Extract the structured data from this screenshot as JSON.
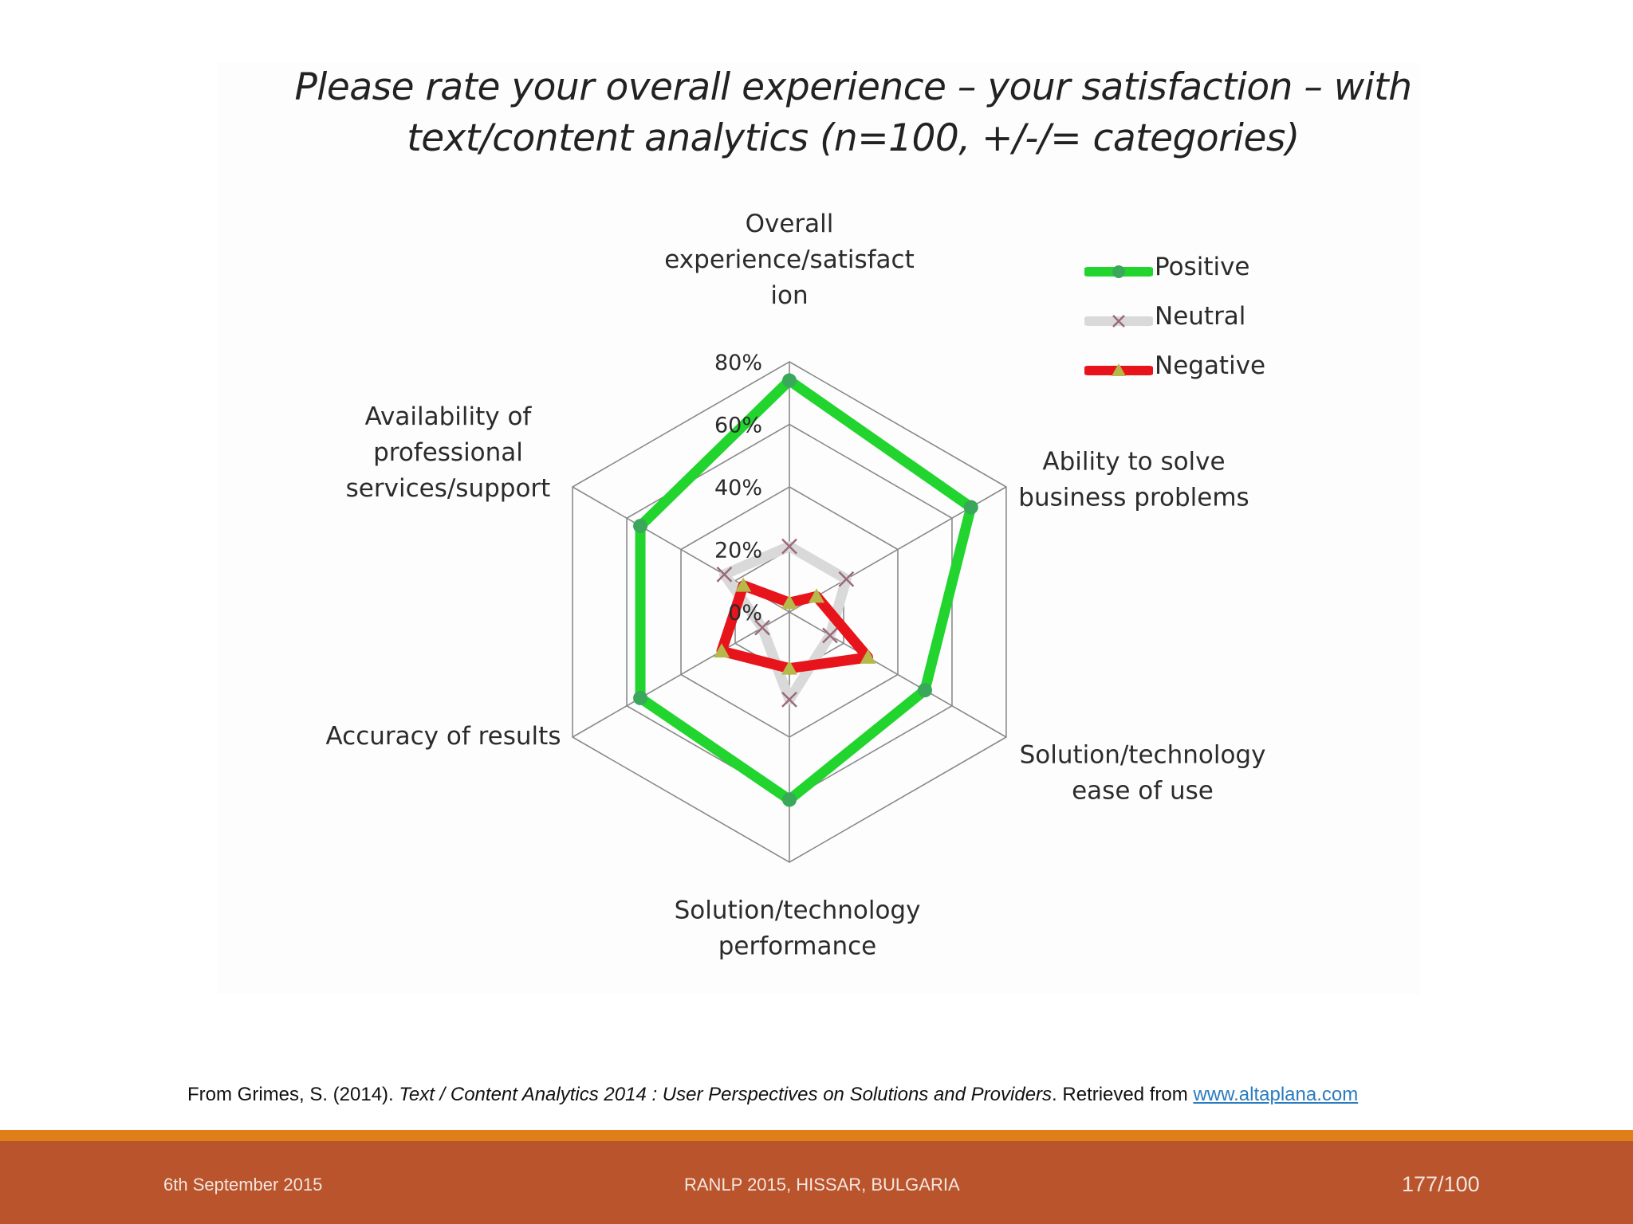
{
  "chart_data": {
    "type": "radar",
    "title": [
      "Please rate your overall experience – your satisfaction – with",
      "text/content analytics (n=100, +/-/= categories)"
    ],
    "axes": [
      {
        "label": [
          "Overall",
          "experience/satisfact",
          "ion"
        ]
      },
      {
        "label": [
          "Ability to solve",
          "business problems"
        ]
      },
      {
        "label": [
          "Solution/technology",
          "ease of use"
        ]
      },
      {
        "label": [
          "Solution/technology",
          "performance"
        ]
      },
      {
        "label": [
          "Accuracy of results"
        ]
      },
      {
        "label": [
          "Availability of",
          "professional",
          "services/support"
        ]
      }
    ],
    "scale": {
      "min": 0,
      "max": 80,
      "ticks": [
        "0%",
        "20%",
        "40%",
        "60%",
        "80%"
      ],
      "tick_values": [
        0,
        20,
        40,
        60,
        80
      ]
    },
    "legend_position": "top-right",
    "series": [
      {
        "name": "Positive",
        "color": "#22d42e",
        "marker": "circle",
        "marker_color": "#3aa85a",
        "values": [
          74,
          67,
          50,
          60,
          55,
          55
        ]
      },
      {
        "name": "Neutral",
        "color": "#d9d9d9",
        "marker": "x",
        "marker_color": "#9b6a7a",
        "values": [
          21,
          21,
          15,
          28,
          10,
          24
        ]
      },
      {
        "name": "Negative",
        "color": "#e8141c",
        "marker": "triangle",
        "marker_color": "#b6b84a",
        "values": [
          3,
          10,
          29,
          18,
          25,
          17
        ]
      }
    ]
  },
  "citation": {
    "prefix": "From Grimes, S. (2014). ",
    "title": "Text / Content Analytics 2014 : User Perspectives on Solutions and Providers",
    "middle": ". Retrieved from ",
    "link": "www.altaplana.com"
  },
  "footer": {
    "date": "6th September 2015",
    "event": "RANLP 2015, HISSAR, BULGARIA",
    "page": "177/100"
  }
}
